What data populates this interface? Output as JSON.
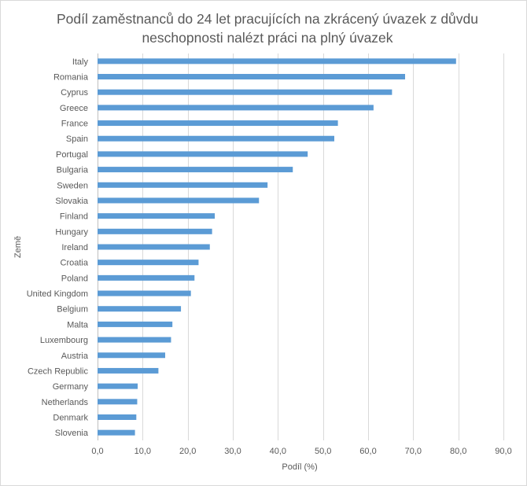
{
  "chart_data": {
    "type": "bar",
    "orientation": "horizontal",
    "title": "Podíl zaměstnanců do 24 let pracujících na zkrácený úvazek z důvdu\nneschopnosti nalézt práci na plný úvazek",
    "xlabel": "Podíl (%)",
    "ylabel": "Země",
    "xlim": [
      0,
      90
    ],
    "xticks": [
      "0,0",
      "10,0",
      "20,0",
      "30,0",
      "40,0",
      "50,0",
      "60,0",
      "70,0",
      "80,0",
      "90,0"
    ],
    "grid": "vertical",
    "bar_color": "#5b9bd5",
    "categories": [
      "Italy",
      "Romania",
      "Cyprus",
      "Greece",
      "France",
      "Spain",
      "Portugal",
      "Bulgaria",
      "Sweden",
      "Slovakia",
      "Finland",
      "Hungary",
      "Ireland",
      "Croatia",
      "Poland",
      "United Kingdom",
      "Belgium",
      "Malta",
      "Luxembourg",
      "Austria",
      "Czech Republic",
      "Germany",
      "Netherlands",
      "Denmark",
      "Slovenia"
    ],
    "values": [
      79.5,
      68.2,
      65.3,
      61.2,
      53.3,
      52.5,
      46.6,
      43.3,
      37.7,
      35.8,
      26.0,
      25.4,
      24.9,
      22.4,
      21.5,
      20.7,
      18.5,
      16.6,
      16.3,
      15.0,
      13.5,
      8.9,
      8.8,
      8.6,
      8.3
    ]
  }
}
